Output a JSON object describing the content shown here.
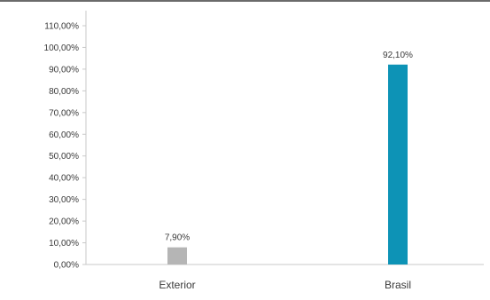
{
  "chart_data": {
    "type": "bar",
    "categories": [
      "Exterior",
      "Brasil"
    ],
    "values": [
      7.9,
      92.1
    ],
    "value_labels": [
      "7,90%",
      "92,10%"
    ],
    "colors": [
      "#b5b5b5",
      "#0d93b6"
    ],
    "yticks": [
      0,
      10,
      20,
      30,
      40,
      50,
      60,
      70,
      80,
      90,
      100,
      110
    ],
    "ytick_labels": [
      "0,00%",
      "10,00%",
      "20,00%",
      "30,00%",
      "40,00%",
      "50,00%",
      "60,00%",
      "70,00%",
      "80,00%",
      "90,00%",
      "100,00%",
      "110,00%"
    ],
    "ylim": [
      0,
      110
    ],
    "title": "",
    "xlabel": "",
    "ylabel": "",
    "grid": false,
    "legend": "none"
  }
}
